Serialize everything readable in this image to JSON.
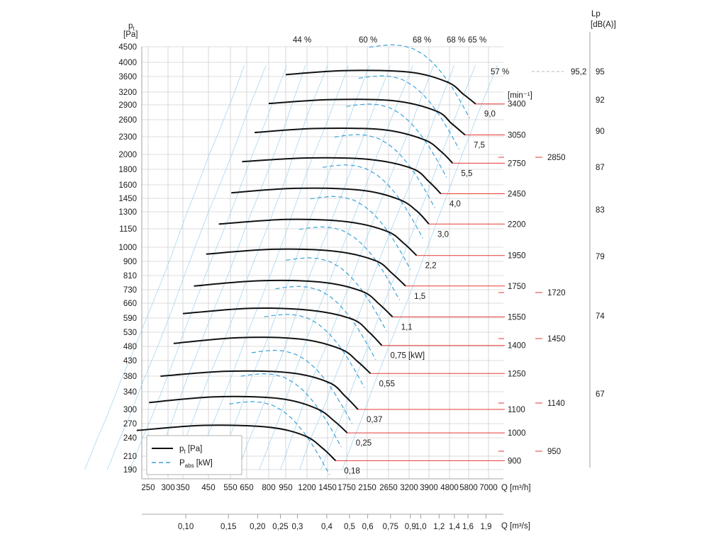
{
  "chart_data": {
    "type": "line",
    "title": "",
    "y_axis": {
      "label_symbol": "p",
      "label_sub": "t",
      "unit": "[Pa]",
      "scale": "log",
      "ticks": [
        4500,
        4000,
        3600,
        3200,
        2900,
        2600,
        2300,
        2000,
        1800,
        1600,
        1450,
        1300,
        1150,
        1000,
        900,
        810,
        730,
        660,
        590,
        530,
        480,
        430,
        380,
        340,
        300,
        270,
        240,
        210,
        190
      ]
    },
    "x_axis": {
      "label": "Q [m³/h]",
      "scale": "log",
      "ticks": [
        250,
        300,
        350,
        450,
        550,
        650,
        800,
        950,
        1200,
        1450,
        1750,
        2150,
        2650,
        3200,
        3900,
        4800,
        5800,
        7000
      ]
    },
    "x_axis_2": {
      "label": "Q [m³/s]",
      "ticks": [
        "0,10",
        "0,15",
        "0,20",
        "0,25",
        "0,3",
        "0,4",
        "0,5",
        "0,6",
        "0,75",
        "0,9",
        "1,0",
        "1,2",
        "1,4",
        "1,6",
        "1,9"
      ],
      "tick_values": [
        0.1,
        0.15,
        0.2,
        0.25,
        0.3,
        0.4,
        0.5,
        0.6,
        0.75,
        0.9,
        1.0,
        1.2,
        1.4,
        1.6,
        1.9
      ]
    },
    "speed_unit": "[min⁻¹]",
    "lp_axis": {
      "label": "Lp",
      "unit": "[dB(A)]",
      "ticks": [
        "95",
        "92",
        "90",
        "87",
        "83",
        "79",
        "74",
        "67"
      ]
    },
    "efficiency_labels": [
      "44 %",
      "60 %",
      "68 %",
      "68 %",
      "65 %",
      "57 %"
    ],
    "pt_curves": [
      {
        "rpm": "3400",
        "points": [
          [
            950,
            3650
          ],
          [
            1700,
            3760
          ],
          [
            3200,
            3720
          ],
          [
            4700,
            3450
          ],
          [
            5500,
            3150
          ],
          [
            6200,
            2920
          ]
        ]
      },
      {
        "rpm": "3050",
        "points": [
          [
            800,
            2930
          ],
          [
            1500,
            3020
          ],
          [
            2800,
            2990
          ],
          [
            4200,
            2770
          ],
          [
            4900,
            2530
          ],
          [
            5600,
            2330
          ]
        ]
      },
      {
        "rpm": "2750",
        "points": [
          [
            700,
            2370
          ],
          [
            1300,
            2440
          ],
          [
            2500,
            2420
          ],
          [
            3700,
            2250
          ],
          [
            4400,
            2050
          ],
          [
            4950,
            1880
          ]
        ]
      },
      {
        "rpm": "2450",
        "points": [
          [
            620,
            1900
          ],
          [
            1200,
            1950
          ],
          [
            2200,
            1930
          ],
          [
            3300,
            1810
          ],
          [
            3900,
            1640
          ],
          [
            4400,
            1500
          ]
        ]
      },
      {
        "rpm": "2200",
        "points": [
          [
            555,
            1510
          ],
          [
            1050,
            1560
          ],
          [
            2000,
            1540
          ],
          [
            2900,
            1440
          ],
          [
            3450,
            1310
          ],
          [
            3900,
            1190
          ]
        ]
      },
      {
        "rpm": "1950",
        "points": [
          [
            495,
            1190
          ],
          [
            950,
            1230
          ],
          [
            1750,
            1210
          ],
          [
            2600,
            1130
          ],
          [
            3050,
            1030
          ],
          [
            3450,
            940
          ]
        ]
      },
      {
        "rpm": "1750",
        "points": [
          [
            440,
            950
          ],
          [
            840,
            985
          ],
          [
            1560,
            970
          ],
          [
            2330,
            905
          ],
          [
            2730,
            825
          ],
          [
            3100,
            750
          ]
        ]
      },
      {
        "rpm": "1550",
        "points": [
          [
            390,
            750
          ],
          [
            750,
            780
          ],
          [
            1400,
            770
          ],
          [
            2050,
            720
          ],
          [
            2420,
            655
          ],
          [
            2750,
            595
          ]
        ]
      },
      {
        "rpm": "1400",
        "points": [
          [
            350,
            610
          ],
          [
            675,
            635
          ],
          [
            1250,
            625
          ],
          [
            1850,
            585
          ],
          [
            2190,
            530
          ],
          [
            2480,
            483
          ]
        ]
      },
      {
        "rpm": "1250",
        "points": [
          [
            318,
            490
          ],
          [
            600,
            510
          ],
          [
            1120,
            505
          ],
          [
            1650,
            470
          ],
          [
            1950,
            427
          ],
          [
            2220,
            388
          ]
        ]
      },
      {
        "rpm": "1100",
        "points": [
          [
            280,
            380
          ],
          [
            535,
            395
          ],
          [
            1000,
            390
          ],
          [
            1470,
            363
          ],
          [
            1720,
            330
          ],
          [
            1960,
            300
          ]
        ]
      },
      {
        "rpm": "1000",
        "points": [
          [
            252,
            315
          ],
          [
            480,
            328
          ],
          [
            890,
            324
          ],
          [
            1310,
            302
          ],
          [
            1550,
            275
          ],
          [
            1760,
            250
          ]
        ]
      },
      {
        "rpm": "900",
        "points": [
          [
            225,
            255
          ],
          [
            430,
            266
          ],
          [
            800,
            262
          ],
          [
            1170,
            244
          ],
          [
            1390,
            222
          ],
          [
            1570,
            203
          ]
        ]
      }
    ],
    "pabs_curves": [
      {
        "label": "9,0"
      },
      {
        "label": "7,5"
      },
      {
        "label": "5,5"
      },
      {
        "label": "4,0"
      },
      {
        "label": "3,0"
      },
      {
        "label": "2,2"
      },
      {
        "label": "1,5"
      },
      {
        "label": "1,1"
      },
      {
        "label": "0,75 [kW]"
      },
      {
        "label": "0,55"
      },
      {
        "label": "0,37"
      },
      {
        "label": "0,25"
      },
      {
        "label": "0,18"
      }
    ],
    "noise_marks": [
      {
        "rpm": "95,2"
      },
      {
        "rpm": "2850"
      },
      {
        "rpm": "1720"
      },
      {
        "rpm": "1450"
      },
      {
        "rpm": "1140"
      },
      {
        "rpm": "950"
      }
    ],
    "legend": [
      {
        "symbol": "p",
        "sub": "t",
        "suffix": " [Pa]",
        "style": "solid"
      },
      {
        "symbol": "P",
        "sub": "abs",
        "suffix": " [kW]",
        "style": "dashed"
      }
    ],
    "colors": {
      "pt_curve": "#111111",
      "pabs_curve": "#3aa3dc",
      "speed_marker": "#e53935",
      "grid": "#bdbdbd",
      "system_line": "#9fd0ec"
    }
  }
}
